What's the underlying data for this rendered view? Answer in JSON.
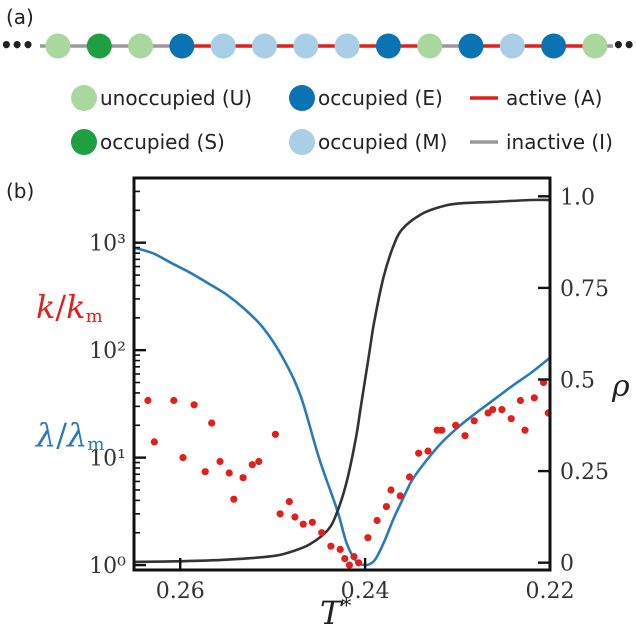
{
  "panel_a": {
    "label": "(a)",
    "ellipsis": "•••",
    "sites": [
      "U",
      "S",
      "U",
      "E",
      "M",
      "M",
      "M",
      "M",
      "E",
      "U",
      "E",
      "M",
      "E",
      "U"
    ],
    "bonds": [
      "I",
      "I",
      "I",
      "A",
      "A",
      "A",
      "A",
      "A",
      "A",
      "I",
      "A",
      "A",
      "A",
      "I"
    ],
    "colors": {
      "U": "#a8d89e",
      "S": "#1fa040",
      "E": "#0a73b4",
      "M": "#a8cfe6",
      "A": "#e0201b",
      "I": "#999999"
    },
    "legend": {
      "unoccupied": "unoccupied (U)",
      "occupied_s": "occupied (S)",
      "occupied_e": "occupied (E)",
      "occupied_m": "occupied (M)",
      "active": "active (A)",
      "inactive": "inactive (I)"
    }
  },
  "panel_b": {
    "label": "(b)"
  },
  "chart_data": {
    "type": "line",
    "x_label": "T*",
    "x_ticks": [
      "0.26",
      "0.24",
      "0.22"
    ],
    "x_lim": [
      0.265,
      0.22
    ],
    "left_axis": {
      "scale": "log",
      "ylim": [
        0.9,
        4000
      ],
      "ticks": [
        "10⁰",
        "10¹",
        "10²",
        "10³"
      ],
      "labels": [
        "k/km",
        "λ/λm"
      ],
      "label_colors": [
        "#e0201b",
        "#2a7ab8"
      ]
    },
    "right_axis": {
      "scale": "linear",
      "ylim": [
        -0.02,
        1.05
      ],
      "ticks": [
        "0",
        "0.25",
        "0.5",
        "0.75",
        "1.0"
      ],
      "label": "ρ"
    },
    "series": [
      {
        "name": "λ/λm",
        "axis": "left",
        "color": "#2a7ab8",
        "x": [
          0.265,
          0.263,
          0.261,
          0.259,
          0.257,
          0.255,
          0.253,
          0.251,
          0.249,
          0.247,
          0.245,
          0.243,
          0.242,
          0.241,
          0.24,
          0.239,
          0.238,
          0.237,
          0.236,
          0.235,
          0.234,
          0.232,
          0.23,
          0.228,
          0.226,
          0.224,
          0.222,
          0.22
        ],
        "y": [
          900,
          800,
          650,
          530,
          420,
          330,
          240,
          160,
          88,
          38,
          10,
          3.2,
          1.6,
          1.1,
          1.0,
          1.1,
          1.6,
          2.6,
          4.0,
          6.0,
          8.0,
          13,
          19,
          26,
          35,
          47,
          62,
          85
        ]
      },
      {
        "name": "ρ",
        "axis": "right",
        "color": "#333333",
        "x": [
          0.265,
          0.26,
          0.255,
          0.25,
          0.248,
          0.246,
          0.244,
          0.243,
          0.242,
          0.241,
          0.2405,
          0.24,
          0.2395,
          0.239,
          0.238,
          0.237,
          0.236,
          0.234,
          0.232,
          0.23,
          0.226,
          0.222,
          0.22
        ],
        "y": [
          0.002,
          0.004,
          0.008,
          0.018,
          0.03,
          0.05,
          0.09,
          0.14,
          0.22,
          0.34,
          0.42,
          0.5,
          0.58,
          0.66,
          0.78,
          0.86,
          0.91,
          0.95,
          0.97,
          0.98,
          0.985,
          0.99,
          0.99
        ]
      },
      {
        "name": "k/km",
        "axis": "left",
        "type": "scatter",
        "color": "#e0201b",
        "x": [
          0.2635,
          0.2628,
          0.2607,
          0.2597,
          0.2585,
          0.2573,
          0.2566,
          0.2557,
          0.2547,
          0.2542,
          0.2532,
          0.2522,
          0.2515,
          0.2497,
          0.2492,
          0.2482,
          0.2476,
          0.2467,
          0.2457,
          0.2447,
          0.2437,
          0.2427,
          0.2422,
          0.2417,
          0.2412,
          0.2407,
          0.2397,
          0.2387,
          0.2377,
          0.2372,
          0.2362,
          0.2352,
          0.2342,
          0.2332,
          0.2322,
          0.2317,
          0.2302,
          0.2292,
          0.2282,
          0.2267,
          0.2262,
          0.2252,
          0.2242,
          0.2232,
          0.2227,
          0.2217,
          0.2207,
          0.2202
        ],
        "y": [
          34,
          14,
          34,
          10,
          31,
          7.4,
          21,
          9.2,
          7.2,
          4.1,
          6.5,
          8.6,
          9.2,
          16.5,
          3.0,
          3.9,
          2.8,
          2.4,
          2.5,
          2.0,
          1.5,
          1.4,
          1.15,
          1.0,
          1.2,
          1.05,
          1.8,
          2.6,
          3.5,
          5.0,
          4.4,
          6.6,
          11,
          11.5,
          18,
          18,
          20,
          16,
          22,
          26,
          28,
          28,
          23,
          34,
          18,
          36,
          50,
          26
        ]
      }
    ]
  }
}
